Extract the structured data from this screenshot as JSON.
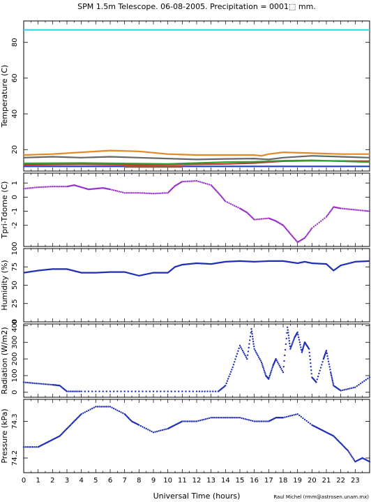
{
  "title": "SPM 1.5m Telescope. 06-08-2005. Precipitation = 0001⬚ mm.",
  "xlabel": "Universal Time (hours)",
  "credit": "Raul Michel (rmm@astrosen.unam.mx)",
  "x_ticks": [
    "0",
    "1",
    "2",
    "3",
    "4",
    "5",
    "6",
    "7",
    "8",
    "9",
    "10",
    "11",
    "12",
    "13",
    "14",
    "15",
    "16",
    "17",
    "18",
    "19",
    "20",
    "21",
    "22",
    "23"
  ],
  "chart_data": [
    {
      "type": "line",
      "ylabel": "Temperature (C)",
      "xlim": [
        0,
        24
      ],
      "ylim": [
        8,
        92
      ],
      "yticks": [
        20,
        40,
        60,
        80
      ],
      "grid": false,
      "series": [
        {
          "color": "#33d6e6",
          "x": [
            0,
            24
          ],
          "y": [
            87,
            87
          ]
        },
        {
          "color": "#e08a2a",
          "x": [
            0,
            2,
            4,
            6,
            8,
            10,
            12,
            14,
            16,
            16.5,
            17,
            18,
            20,
            22,
            24
          ],
          "y": [
            17,
            17.5,
            18.5,
            19.5,
            19,
            17.5,
            17,
            17,
            17,
            16.5,
            17.5,
            18.5,
            18,
            17.5,
            17.5
          ]
        },
        {
          "color": "#666666",
          "x": [
            0,
            2,
            4,
            6,
            8,
            10,
            12,
            14,
            16,
            17,
            18,
            20,
            22,
            24
          ],
          "y": [
            15.5,
            16,
            15.5,
            16,
            15.5,
            15,
            14.5,
            14.8,
            15,
            14.5,
            15.5,
            16.5,
            16,
            15.5
          ]
        },
        {
          "color": "#c0392b",
          "x": [
            0,
            4,
            8,
            10,
            14,
            16,
            17,
            18,
            20,
            24
          ],
          "y": [
            11.5,
            11.8,
            11.5,
            11.6,
            12,
            12.5,
            13,
            13.5,
            13.8,
            13.5
          ]
        },
        {
          "color": "#2ea02e",
          "x": [
            0,
            4,
            8,
            10,
            14,
            16,
            18,
            20,
            24
          ],
          "y": [
            12.3,
            12.5,
            12.2,
            12,
            13,
            13.2,
            13.8,
            14,
            13
          ]
        },
        {
          "color": "#1f3fbf",
          "x": [
            0,
            24
          ],
          "y": [
            10.6,
            10.6
          ]
        },
        {
          "color": "#a0522d",
          "x": [
            7,
            11
          ],
          "y": [
            10.3,
            10.3
          ]
        }
      ]
    },
    {
      "type": "scatter",
      "ylabel": "Tpri-Tdome (C)",
      "xlim": [
        0,
        24
      ],
      "ylim": [
        -3.5,
        1.7
      ],
      "yticks": [
        -2,
        -1,
        0,
        1
      ],
      "grid": false,
      "series": [
        {
          "color": "#9932cc",
          "x": [
            0,
            1,
            2,
            3,
            3.5,
            4,
            4.5,
            5,
            5.5,
            6,
            7,
            8,
            9,
            10,
            10.5,
            11,
            12,
            13,
            13.5,
            14,
            15,
            15.5,
            16,
            17,
            17.5,
            18,
            18.5,
            19,
            19.5,
            20,
            21,
            21.5,
            22,
            23,
            24
          ],
          "y": [
            0.6,
            0.7,
            0.75,
            0.75,
            0.85,
            0.7,
            0.55,
            0.6,
            0.65,
            0.55,
            0.3,
            0.3,
            0.25,
            0.3,
            0.8,
            1.1,
            1.15,
            0.85,
            0.3,
            -0.3,
            -0.8,
            -1.1,
            -1.6,
            -1.5,
            -1.7,
            -2,
            -2.6,
            -3.2,
            -2.9,
            -2.2,
            -1.4,
            -0.7,
            -0.8,
            -0.9,
            -1
          ]
        }
      ]
    },
    {
      "type": "line",
      "ylabel": "Humidity (%)",
      "xlim": [
        0,
        24
      ],
      "ylim": [
        0,
        100
      ],
      "yticks": [
        0,
        25,
        50,
        75,
        100
      ],
      "grid": false,
      "series": [
        {
          "color": "#1f2fb4",
          "x": [
            0,
            1,
            2,
            3,
            4,
            5,
            6,
            7,
            8,
            9,
            10,
            10.5,
            11,
            12,
            13,
            14,
            15,
            16,
            17,
            18,
            19,
            19.5,
            20,
            21,
            21.5,
            22,
            23,
            24
          ],
          "y": [
            67,
            70,
            72,
            72,
            67,
            67,
            68,
            68,
            63,
            67,
            67,
            75,
            78,
            80,
            79,
            82,
            83,
            82,
            83,
            83,
            80,
            82,
            80,
            79,
            70,
            77,
            82,
            83
          ]
        }
      ]
    },
    {
      "type": "scatter",
      "ylabel": "Radiation (W/m2)",
      "xlim": [
        0,
        24
      ],
      "ylim": [
        -30,
        410
      ],
      "yticks": [
        0,
        100,
        200,
        300,
        400
      ],
      "grid": false,
      "series": [
        {
          "color": "#1f2fb4",
          "x": [
            0,
            1,
            2,
            2.5,
            3,
            4,
            6,
            8,
            10,
            12,
            13.5,
            14,
            14.5,
            15,
            15.5,
            15.8,
            16,
            16.5,
            16.8,
            17,
            17.3,
            17.5,
            18,
            18.3,
            18.5,
            18.8,
            19,
            19.3,
            19.5,
            19.8,
            20,
            20.3,
            20.8,
            21,
            21.3,
            21.5,
            22,
            23,
            24
          ],
          "y": [
            60,
            52,
            45,
            40,
            5,
            5,
            5,
            5,
            5,
            5,
            5,
            40,
            150,
            280,
            200,
            380,
            260,
            180,
            100,
            80,
            160,
            200,
            120,
            390,
            260,
            330,
            360,
            240,
            300,
            260,
            90,
            60,
            200,
            250,
            120,
            40,
            10,
            30,
            90
          ]
        }
      ]
    },
    {
      "type": "scatter",
      "ylabel": "Pressure (kPa)",
      "xlim": [
        0,
        24
      ],
      "ylim": [
        74.16,
        74.36
      ],
      "yticks": [
        74.2,
        74.3
      ],
      "grid": false,
      "series": [
        {
          "color": "#1f2fb4",
          "x": [
            0,
            1,
            1.5,
            2,
            2.5,
            3,
            3.5,
            4,
            5,
            6,
            7,
            7.5,
            8,
            9,
            10,
            10.5,
            11,
            12,
            13,
            14,
            15,
            16,
            17,
            17.5,
            18,
            19,
            20,
            20.5,
            21,
            21.5,
            22,
            22.5,
            23,
            23.5,
            24
          ],
          "y": [
            74.23,
            74.23,
            74.24,
            74.25,
            74.26,
            74.28,
            74.3,
            74.32,
            74.34,
            74.34,
            74.32,
            74.3,
            74.29,
            74.27,
            74.28,
            74.29,
            74.3,
            74.3,
            74.31,
            74.31,
            74.31,
            74.3,
            74.3,
            74.31,
            74.31,
            74.32,
            74.29,
            74.28,
            74.27,
            74.26,
            74.24,
            74.22,
            74.19,
            74.2,
            74.19
          ]
        }
      ]
    }
  ]
}
